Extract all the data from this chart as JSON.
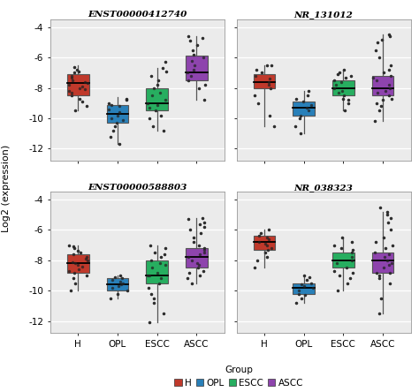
{
  "panels": [
    {
      "title": "ENST00000412740",
      "groups": {
        "H": {
          "q1": -8.5,
          "median": -7.7,
          "q3": -7.1,
          "whisker_low": -9.5,
          "whisker_high": -6.5,
          "points": [
            -9.5,
            -9.2,
            -8.9,
            -8.7,
            -8.5,
            -8.3,
            -8.2,
            -8.1,
            -8.0,
            -7.9,
            -7.8,
            -7.7,
            -7.6,
            -7.5,
            -7.3,
            -7.2,
            -7.0,
            -6.9,
            -6.8,
            -6.6
          ]
        },
        "OPL": {
          "q1": -10.3,
          "median": -9.7,
          "q3": -9.1,
          "whisker_low": -11.7,
          "whisker_high": -8.6,
          "points": [
            -11.7,
            -11.2,
            -10.8,
            -10.5,
            -10.3,
            -10.1,
            -10.0,
            -9.8,
            -9.6,
            -9.4,
            -9.2,
            -9.1,
            -9.0,
            -8.8,
            -8.7
          ]
        },
        "ESCC": {
          "q1": -9.5,
          "median": -9.0,
          "q3": -8.0,
          "whisker_low": -10.8,
          "whisker_high": -6.7,
          "points": [
            -10.8,
            -10.5,
            -10.0,
            -9.8,
            -9.5,
            -9.3,
            -9.1,
            -9.0,
            -8.8,
            -8.5,
            -8.3,
            -8.0,
            -7.8,
            -7.5,
            -7.2,
            -6.9,
            -6.7,
            -6.3
          ]
        },
        "ASCC": {
          "q1": -7.5,
          "median": -7.0,
          "q3": -5.9,
          "whisker_low": -8.8,
          "whisker_high": -4.6,
          "points": [
            -8.8,
            -8.0,
            -7.8,
            -7.5,
            -7.2,
            -7.0,
            -6.8,
            -6.5,
            -6.2,
            -6.0,
            -5.8,
            -5.5,
            -5.2,
            -4.9,
            -4.7,
            -4.6
          ]
        }
      }
    },
    {
      "title": "NR_131012",
      "groups": {
        "H": {
          "q1": -8.0,
          "median": -7.6,
          "q3": -7.1,
          "whisker_low": -10.5,
          "whisker_high": -6.5,
          "points": [
            -10.5,
            -9.8,
            -9.0,
            -8.5,
            -8.0,
            -7.8,
            -7.6,
            -7.4,
            -7.2,
            -7.0,
            -6.8,
            -6.5,
            -6.5
          ]
        },
        "OPL": {
          "q1": -9.8,
          "median": -9.3,
          "q3": -8.9,
          "whisker_low": -11.0,
          "whisker_high": -8.2,
          "points": [
            -11.0,
            -10.5,
            -10.0,
            -9.8,
            -9.5,
            -9.3,
            -9.1,
            -8.9,
            -8.7,
            -8.5,
            -8.2
          ]
        },
        "ESCC": {
          "q1": -8.5,
          "median": -8.0,
          "q3": -7.5,
          "whisker_low": -9.5,
          "whisker_high": -6.8,
          "points": [
            -9.5,
            -9.0,
            -8.7,
            -8.5,
            -8.2,
            -8.0,
            -7.8,
            -7.5,
            -7.3,
            -7.0,
            -6.8,
            -7.2,
            -8.3,
            -7.6,
            -8.8,
            -7.1
          ]
        },
        "ASCC": {
          "q1": -8.5,
          "median": -8.0,
          "q3": -7.2,
          "whisker_low": -10.2,
          "whisker_high": -4.5,
          "points": [
            -10.2,
            -9.5,
            -9.0,
            -8.7,
            -8.5,
            -8.2,
            -8.0,
            -7.8,
            -7.5,
            -7.2,
            -7.0,
            -6.8,
            -6.5,
            -6.0,
            -5.5,
            -5.0,
            -4.8,
            -4.5,
            -4.6,
            -7.3,
            -8.8,
            -9.2,
            -8.3
          ]
        }
      }
    },
    {
      "title": "ENST00000588803",
      "groups": {
        "H": {
          "q1": -8.8,
          "median": -8.2,
          "q3": -7.6,
          "whisker_low": -10.0,
          "whisker_high": -7.0,
          "points": [
            -10.0,
            -9.5,
            -9.0,
            -8.8,
            -8.6,
            -8.4,
            -8.2,
            -8.0,
            -7.8,
            -7.6,
            -7.4,
            -7.2,
            -7.1,
            -7.0,
            -7.5,
            -8.3,
            -8.7,
            -9.2,
            -7.9,
            -8.1
          ]
        },
        "OPL": {
          "q1": -10.0,
          "median": -9.6,
          "q3": -9.2,
          "whisker_low": -10.5,
          "whisker_high": -9.0,
          "points": [
            -10.5,
            -10.2,
            -10.0,
            -9.8,
            -9.6,
            -9.5,
            -9.3,
            -9.2,
            -9.1,
            -9.0,
            -9.4,
            -9.7
          ]
        },
        "ESCC": {
          "q1": -9.5,
          "median": -9.0,
          "q3": -8.0,
          "whisker_low": -12.1,
          "whisker_high": -7.0,
          "points": [
            -12.1,
            -11.5,
            -10.8,
            -10.2,
            -9.8,
            -9.5,
            -9.2,
            -9.0,
            -8.8,
            -8.5,
            -8.2,
            -8.0,
            -7.8,
            -7.5,
            -7.2,
            -7.0,
            -10.5,
            -9.0,
            -8.3,
            -7.6
          ]
        },
        "ASCC": {
          "q1": -8.5,
          "median": -7.8,
          "q3": -7.2,
          "whisker_low": -9.5,
          "whisker_high": -5.2,
          "points": [
            -9.5,
            -9.0,
            -8.7,
            -8.5,
            -8.2,
            -8.0,
            -7.8,
            -7.5,
            -7.2,
            -7.0,
            -6.8,
            -6.5,
            -6.2,
            -5.8,
            -5.5,
            -5.2,
            -5.6,
            -5.3,
            -6.0,
            -7.3,
            -8.3,
            -9.2,
            -8.8,
            -7.6
          ]
        }
      }
    },
    {
      "title": "NR_038323",
      "groups": {
        "H": {
          "q1": -7.3,
          "median": -6.8,
          "q3": -6.4,
          "whisker_low": -8.5,
          "whisker_high": -6.0,
          "points": [
            -8.5,
            -8.0,
            -7.5,
            -7.3,
            -7.0,
            -6.8,
            -6.6,
            -6.4,
            -6.2,
            -6.0,
            -6.5,
            -7.2,
            -7.8,
            -6.9
          ]
        },
        "OPL": {
          "q1": -10.2,
          "median": -9.8,
          "q3": -9.5,
          "whisker_low": -10.8,
          "whisker_high": -9.0,
          "points": [
            -10.8,
            -10.5,
            -10.2,
            -10.0,
            -9.8,
            -9.6,
            -9.5,
            -9.3,
            -9.1,
            -9.0,
            -10.3,
            -9.7
          ]
        },
        "ESCC": {
          "q1": -8.5,
          "median": -8.0,
          "q3": -7.5,
          "whisker_low": -10.0,
          "whisker_high": -6.5,
          "points": [
            -10.0,
            -9.5,
            -9.0,
            -8.7,
            -8.5,
            -8.2,
            -8.0,
            -7.8,
            -7.5,
            -7.2,
            -7.0,
            -6.8,
            -6.5,
            -8.8,
            -7.3,
            -9.2
          ]
        },
        "ASCC": {
          "q1": -8.8,
          "median": -8.0,
          "q3": -7.5,
          "whisker_low": -11.5,
          "whisker_high": -4.8,
          "points": [
            -11.5,
            -10.5,
            -9.5,
            -9.0,
            -8.8,
            -8.5,
            -8.2,
            -8.0,
            -7.8,
            -7.5,
            -7.2,
            -7.0,
            -6.8,
            -6.5,
            -6.0,
            -5.5,
            -5.0,
            -4.8,
            -4.5,
            -9.2,
            -8.3,
            -7.6,
            -8.8,
            -5.2
          ]
        }
      }
    }
  ],
  "colors": {
    "H": "#C0392B",
    "OPL": "#2980B9",
    "ESCC": "#27AE60",
    "ASCC": "#8E44AD"
  },
  "group_order": [
    "H",
    "OPL",
    "ESCC",
    "ASCC"
  ],
  "ylim": [
    -12.8,
    -3.5
  ],
  "yticks": [
    -12,
    -10,
    -8,
    -6,
    -4
  ],
  "ylabel": "Log2 (expression)",
  "background_color": "#EBEBEB",
  "grid_color": "white",
  "box_width": 0.55
}
